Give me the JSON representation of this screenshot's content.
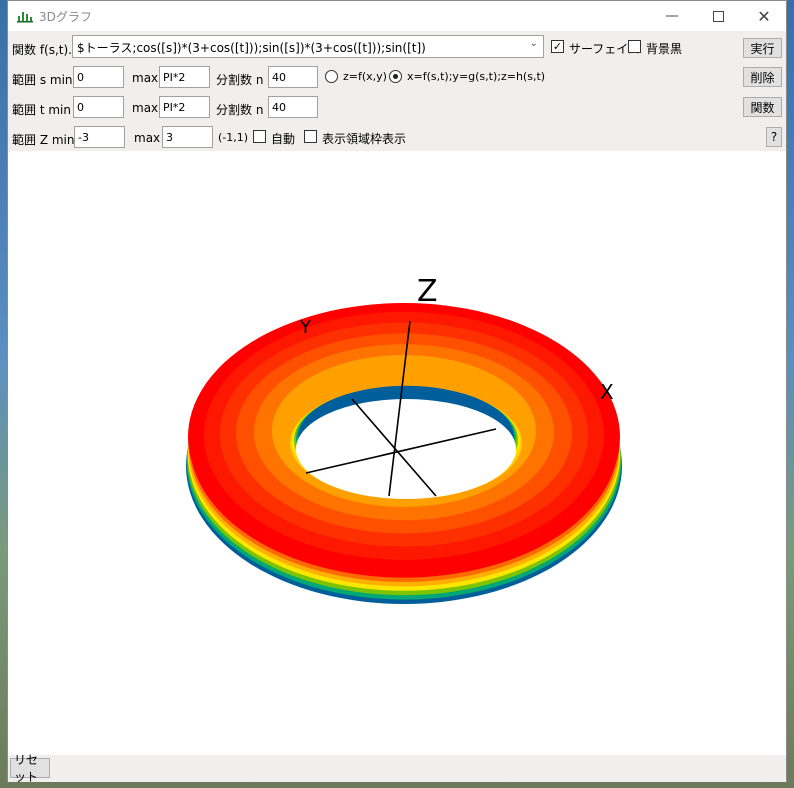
{
  "window": {
    "title": "3Dグラフ",
    "controls": [
      "minimize-icon",
      "maximize-icon",
      "close-icon"
    ]
  },
  "row1": {
    "func_label": "関数 f(s,t)..",
    "func_value": "$トーラス;cos([s])*(3+cos([t]));sin([s])*(3+cos([t]));sin([t])",
    "surface_label": "サーフェイス",
    "surface_checked": true,
    "bg_black_label": "背景黒",
    "bg_black_checked": false,
    "run_label": "実行"
  },
  "row2": {
    "range_label": "範囲 s min",
    "min_value": "0",
    "max_label": "max",
    "max_value": "PI*2",
    "div_label": "分割数 n",
    "div_value": "40",
    "radio1_label": "z=f(x,y)",
    "radio2_label": "x=f(s,t);y=g(s,t);z=h(s,t)",
    "selected_radio": 2,
    "delete_label": "削除"
  },
  "row3": {
    "range_label": "範囲 t min",
    "min_value": "0",
    "max_label": "max",
    "max_value": "PI*2",
    "div_label": "分割数 n",
    "div_value": "40",
    "func_btn_label": "関数"
  },
  "row4": {
    "range_label": "範囲 Z min",
    "min_value": "-3",
    "max_label": "max",
    "max_value": "3",
    "hint": "(-1,1)",
    "auto_label": "自動",
    "auto_checked": false,
    "frame_label": "表示領域枠表示",
    "frame_checked": false,
    "help_label": "?"
  },
  "graph": {
    "axis_x": "X",
    "axis_y": "Y",
    "axis_z": "Z",
    "colors": [
      "#005f9a",
      "#00a878",
      "#7cc400",
      "#ffe600",
      "#ffb000",
      "#ff6a00",
      "#ff0000"
    ]
  },
  "status": {
    "reset_label": "リセット"
  }
}
